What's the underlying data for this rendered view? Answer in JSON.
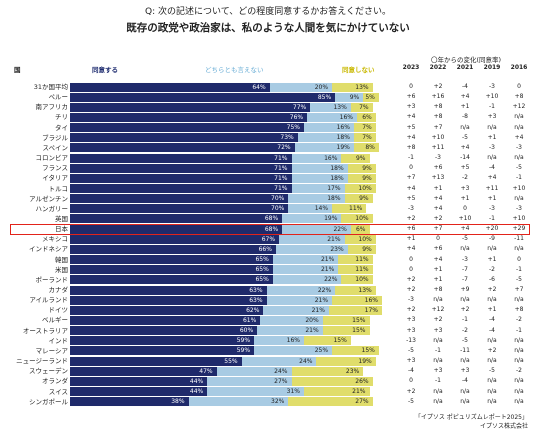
{
  "question": "Q: 次の記述について、どの程度同意するかお答えください。",
  "title": "既存の政党や政治家は、私のような人間を気にかけていない",
  "change_header": "〇年からの変化(同意率)",
  "col_country": "国",
  "col_agree": "同意する",
  "col_neither": "どちらとも言えない",
  "col_disagree": "同意しない",
  "years": [
    "2023",
    "2022",
    "2021",
    "2019",
    "2016"
  ],
  "source_line1": "「イプソス ポピュリズムレポート2025」",
  "source_line2": "イプソス株式会社",
  "colors": {
    "agree": "#1f2a6b",
    "neither": "#a8cbe3",
    "disagree": "#e0dd6b",
    "highlight": "#e2231a"
  },
  "chart_data": {
    "type": "bar",
    "stacked": true,
    "orientation": "horizontal",
    "highlight": "日本",
    "categories": [
      "31か国平均",
      "ペルー",
      "南アフリカ",
      "チリ",
      "タイ",
      "ブラジル",
      "スペイン",
      "コロンビア",
      "フランス",
      "イタリア",
      "トルコ",
      "アルゼンチン",
      "ハンガリー",
      "英国",
      "日本",
      "メキシコ",
      "インドネシア",
      "韓国",
      "米国",
      "ポーランド",
      "カナダ",
      "アイルランド",
      "ドイツ",
      "ベルギー",
      "オーストラリア",
      "インド",
      "マレーシア",
      "ニュージーランド",
      "スウェーデン",
      "オランダ",
      "スイス",
      "シンガポール"
    ],
    "series": [
      {
        "name": "同意する",
        "values": [
          64,
          85,
          77,
          76,
          75,
          73,
          72,
          71,
          71,
          71,
          71,
          70,
          70,
          68,
          68,
          67,
          66,
          65,
          65,
          65,
          63,
          63,
          62,
          61,
          60,
          59,
          59,
          55,
          47,
          44,
          44,
          38
        ]
      },
      {
        "name": "どちらとも言えない",
        "values": [
          20,
          9,
          13,
          16,
          16,
          18,
          19,
          16,
          18,
          18,
          17,
          18,
          14,
          19,
          22,
          21,
          23,
          21,
          21,
          22,
          22,
          21,
          21,
          20,
          21,
          16,
          25,
          24,
          24,
          27,
          31,
          32
        ]
      },
      {
        "name": "同意しない",
        "values": [
          13,
          5,
          7,
          6,
          7,
          7,
          8,
          9,
          9,
          9,
          10,
          9,
          11,
          10,
          6,
          10,
          9,
          11,
          11,
          10,
          13,
          16,
          17,
          15,
          15,
          15,
          15,
          19,
          23,
          26,
          21,
          27
        ]
      }
    ],
    "changes": [
      [
        "0",
        "+2",
        "-4",
        "-3",
        "0"
      ],
      [
        "+6",
        "+16",
        "+4",
        "+10",
        "+8"
      ],
      [
        "+3",
        "+8",
        "+1",
        "-1",
        "+12"
      ],
      [
        "+4",
        "+8",
        "-8",
        "+3",
        "n/a"
      ],
      [
        "+5",
        "+7",
        "n/a",
        "n/a",
        "n/a"
      ],
      [
        "+4",
        "+10",
        "-5",
        "+1",
        "+4"
      ],
      [
        "+8",
        "+11",
        "+4",
        "-3",
        "-3"
      ],
      [
        "-1",
        "-3",
        "-14",
        "n/a",
        "n/a"
      ],
      [
        "0",
        "+6",
        "+5",
        "-4",
        "-5"
      ],
      [
        "+7",
        "+13",
        "-2",
        "+4",
        "-1"
      ],
      [
        "+4",
        "+1",
        "+3",
        "+11",
        "+10"
      ],
      [
        "+5",
        "+4",
        "+1",
        "+1",
        "n/a"
      ],
      [
        "-3",
        "+4",
        "0",
        "-3",
        "-3"
      ],
      [
        "+2",
        "+2",
        "+10",
        "-1",
        "+10"
      ],
      [
        "+6",
        "+7",
        "+4",
        "+20",
        "+29"
      ],
      [
        "+1",
        "0",
        "-5",
        "-9",
        "-11"
      ],
      [
        "+4",
        "+6",
        "n/a",
        "n/a",
        "n/a"
      ],
      [
        "0",
        "+4",
        "-3",
        "+1",
        "0"
      ],
      [
        "0",
        "+1",
        "-7",
        "-2",
        "-1"
      ],
      [
        "+2",
        "+1",
        "-7",
        "-6",
        "-5"
      ],
      [
        "+2",
        "+8",
        "+9",
        "+2",
        "+7"
      ],
      [
        "-3",
        "n/a",
        "n/a",
        "n/a",
        "n/a"
      ],
      [
        "+2",
        "+12",
        "+2",
        "+1",
        "+8"
      ],
      [
        "+3",
        "+2",
        "-1",
        "-4",
        "-2"
      ],
      [
        "+3",
        "+3",
        "-2",
        "-4",
        "-1"
      ],
      [
        "-13",
        "n/a",
        "-5",
        "n/a",
        "n/a"
      ],
      [
        "-5",
        "-1",
        "-11",
        "+2",
        "n/a"
      ],
      [
        "+3",
        "n/a",
        "n/a",
        "n/a",
        "n/a"
      ],
      [
        "-4",
        "+3",
        "+3",
        "-5",
        "-2"
      ],
      [
        "0",
        "-1",
        "-4",
        "n/a",
        "n/a"
      ],
      [
        "+2",
        "n/a",
        "n/a",
        "n/a",
        "n/a"
      ],
      [
        "-5",
        "n/a",
        "n/a",
        "n/a",
        "n/a"
      ]
    ]
  }
}
